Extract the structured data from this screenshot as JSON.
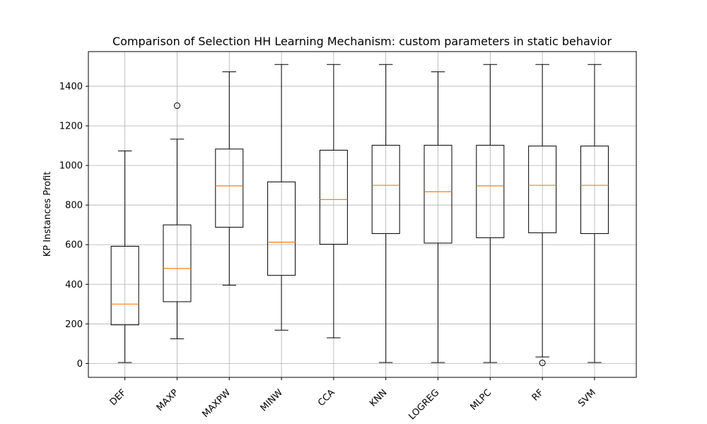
{
  "chart_data": {
    "type": "box",
    "title": "Comparison of Selection HH Learning Mechanism: custom parameters in static behavior",
    "xlabel": "",
    "ylabel": "KP Instances Profit",
    "ylim": [
      -70,
      1575
    ],
    "yticks": [
      0,
      200,
      400,
      600,
      800,
      1000,
      1200,
      1400
    ],
    "grid": true,
    "categories": [
      "DEF",
      "MAXP",
      "MAXPW",
      "MINW",
      "CCA",
      "KNN",
      "LOGREG",
      "MLPC",
      "RF",
      "SVM"
    ],
    "boxes": [
      {
        "whisker_low": 5,
        "q1": 195,
        "median": 300,
        "q3": 592,
        "whisker_high": 1073,
        "outliers": []
      },
      {
        "whisker_low": 125,
        "q1": 312,
        "median": 480,
        "q3": 700,
        "whisker_high": 1133,
        "outliers": [
          1302
        ]
      },
      {
        "whisker_low": 395,
        "q1": 688,
        "median": 897,
        "q3": 1083,
        "whisker_high": 1473,
        "outliers": []
      },
      {
        "whisker_low": 168,
        "q1": 445,
        "median": 613,
        "q3": 917,
        "whisker_high": 1510,
        "outliers": []
      },
      {
        "whisker_low": 130,
        "q1": 602,
        "median": 828,
        "q3": 1077,
        "whisker_high": 1510,
        "outliers": []
      },
      {
        "whisker_low": 5,
        "q1": 656,
        "median": 900,
        "q3": 1102,
        "whisker_high": 1510,
        "outliers": []
      },
      {
        "whisker_low": 5,
        "q1": 608,
        "median": 867,
        "q3": 1102,
        "whisker_high": 1473,
        "outliers": []
      },
      {
        "whisker_low": 5,
        "q1": 635,
        "median": 897,
        "q3": 1102,
        "whisker_high": 1510,
        "outliers": []
      },
      {
        "whisker_low": 33,
        "q1": 660,
        "median": 900,
        "q3": 1098,
        "whisker_high": 1510,
        "outliers": [
          3
        ]
      },
      {
        "whisker_low": 5,
        "q1": 656,
        "median": 900,
        "q3": 1098,
        "whisker_high": 1510,
        "outliers": []
      }
    ],
    "colors": {
      "box": "#000000",
      "median": "#ff7f0e",
      "grid": "#b0b0b0"
    }
  }
}
